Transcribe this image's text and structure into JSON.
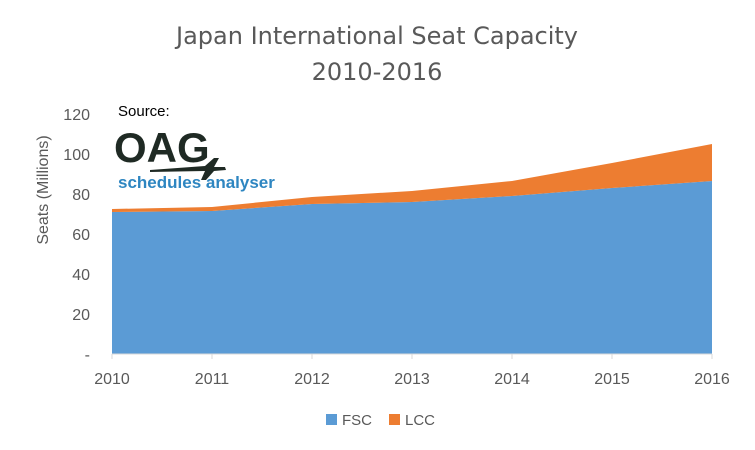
{
  "chart_data": {
    "type": "area",
    "stacked": true,
    "title": [
      "Japan International Seat Capacity",
      "2010-2016"
    ],
    "ylabel": "Seats (Millions)",
    "xlabel": "",
    "ylim": [
      0,
      120
    ],
    "yticks": [
      "-",
      "20",
      "40",
      "60",
      "80",
      "100",
      "120"
    ],
    "x": [
      "2010",
      "2011",
      "2012",
      "2013",
      "2014",
      "2015",
      "2016"
    ],
    "series": [
      {
        "name": "FSC",
        "color": "#5b9bd5",
        "values": [
          71,
          71.5,
          75,
          76,
          79,
          83,
          86.5
        ]
      },
      {
        "name": "LCC",
        "color": "#ed7d31",
        "values": [
          1.5,
          2,
          3.5,
          5.5,
          7.5,
          12.5,
          18.5
        ]
      }
    ],
    "grid": false,
    "legend_position": "bottom-center"
  },
  "source_logo": {
    "source_label": "Source:",
    "brand": "OAG",
    "tagline": "schedules analyser",
    "icon": "airplane-icon"
  }
}
